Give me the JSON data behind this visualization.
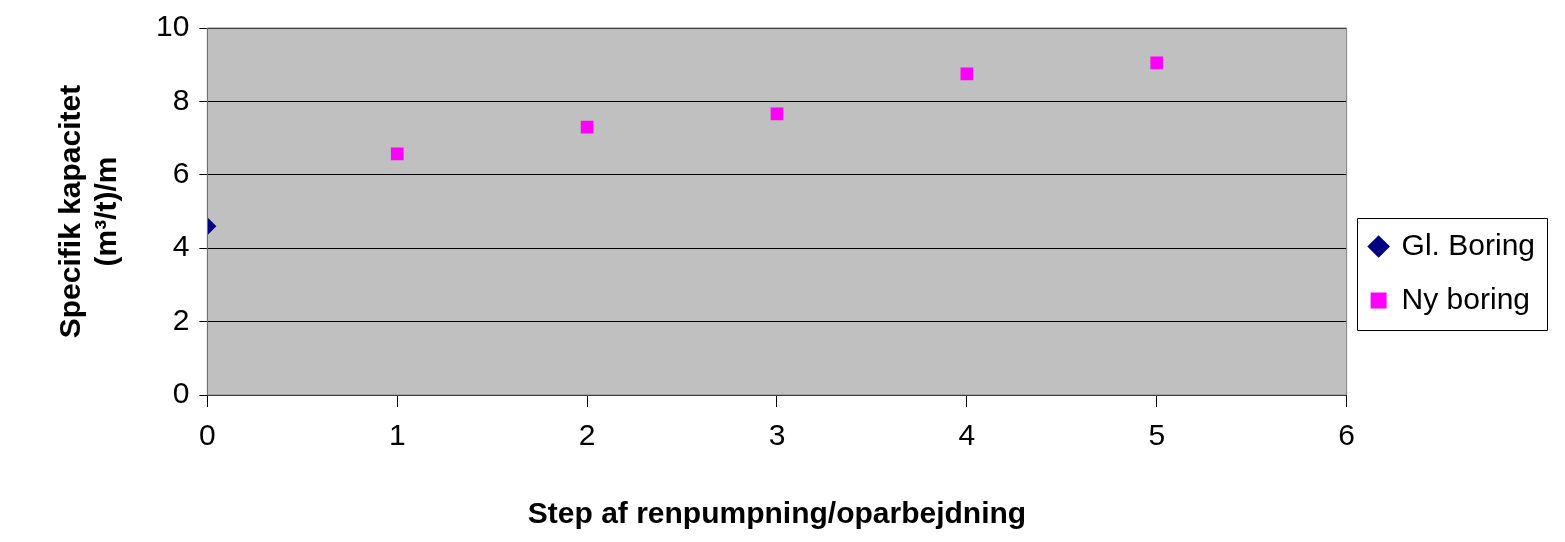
{
  "chart_data": {
    "type": "scatter",
    "xlabel": "Step af renpumpning/oparbejdning",
    "ylabel": "Specifik kapacitet\n(m³/t)/m",
    "xlim": [
      0,
      6
    ],
    "xticks": [
      0,
      1,
      2,
      3,
      4,
      5,
      6
    ],
    "ylim": [
      0,
      10
    ],
    "yticks": [
      0,
      2,
      4,
      6,
      8,
      10
    ],
    "grid": "y",
    "legend": "right",
    "series": [
      {
        "name": "Gl. Boring",
        "color": "#000080",
        "marker": "diamond",
        "x": [
          0
        ],
        "values": [
          4.6
        ]
      },
      {
        "name": "Ny boring",
        "color": "#ff00ff",
        "marker": "square",
        "x": [
          1,
          2,
          3,
          4,
          5
        ],
        "values": [
          6.57,
          7.3,
          7.66,
          8.75,
          9.05
        ]
      }
    ]
  }
}
